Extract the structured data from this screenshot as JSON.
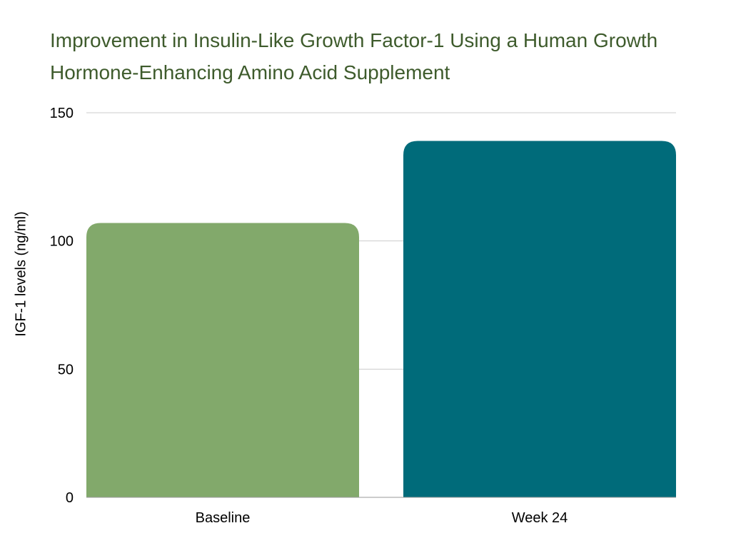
{
  "chart_data": {
    "type": "bar",
    "title": "Improvement in Insulin-Like Growth Factor-1 Using a Human Growth Hormone-Enhancing Amino Acid Supplement",
    "xlabel": "",
    "ylabel": "IGF-1 levels (ng/ml)",
    "categories": [
      "Baseline",
      "Week 24"
    ],
    "values": [
      107,
      139
    ],
    "bar_colors": [
      "#82a96b",
      "#006b7a"
    ],
    "title_color": "#3e5b2c",
    "ylim": [
      0,
      150
    ],
    "yticks": [
      0,
      50,
      100,
      150
    ],
    "grid": true,
    "legend": "none"
  }
}
